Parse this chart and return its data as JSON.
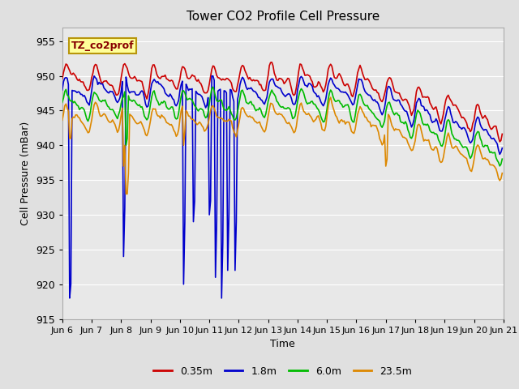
{
  "title": "Tower CO2 Profile Cell Pressure",
  "xlabel": "Time",
  "ylabel": "Cell Pressure (mBar)",
  "ylim": [
    915,
    957
  ],
  "yticks": [
    915,
    920,
    925,
    930,
    935,
    940,
    945,
    950,
    955
  ],
  "fig_bg": "#e0e0e0",
  "plot_bg": "#e8e8e8",
  "grid_color": "#ffffff",
  "legend_label": "TZ_co2prof",
  "legend_bg": "#ffff99",
  "legend_border": "#b8960c",
  "series": [
    {
      "label": "0.35m",
      "color": "#cc0000",
      "lw": 1.2
    },
    {
      "label": "1.8m",
      "color": "#0000cc",
      "lw": 1.2
    },
    {
      "label": "6.0m",
      "color": "#00bb00",
      "lw": 1.2
    },
    {
      "label": "23.5m",
      "color": "#dd8800",
      "lw": 1.2
    }
  ],
  "n_points": 360,
  "x_tick_labels": [
    "Jun 6",
    "Jun 7",
    "Jun 8",
    "Jun 9",
    "Jun 10",
    "Jun 11",
    "Jun 12",
    "Jun 13",
    "Jun 14",
    "Jun 15",
    "Jun 16",
    "Jun 17",
    "Jun 18",
    "Jun 19",
    "Jun 20",
    "Jun 21"
  ],
  "x_tick_positions": [
    0,
    24,
    48,
    72,
    96,
    120,
    144,
    168,
    192,
    216,
    240,
    264,
    288,
    312,
    336,
    360
  ]
}
